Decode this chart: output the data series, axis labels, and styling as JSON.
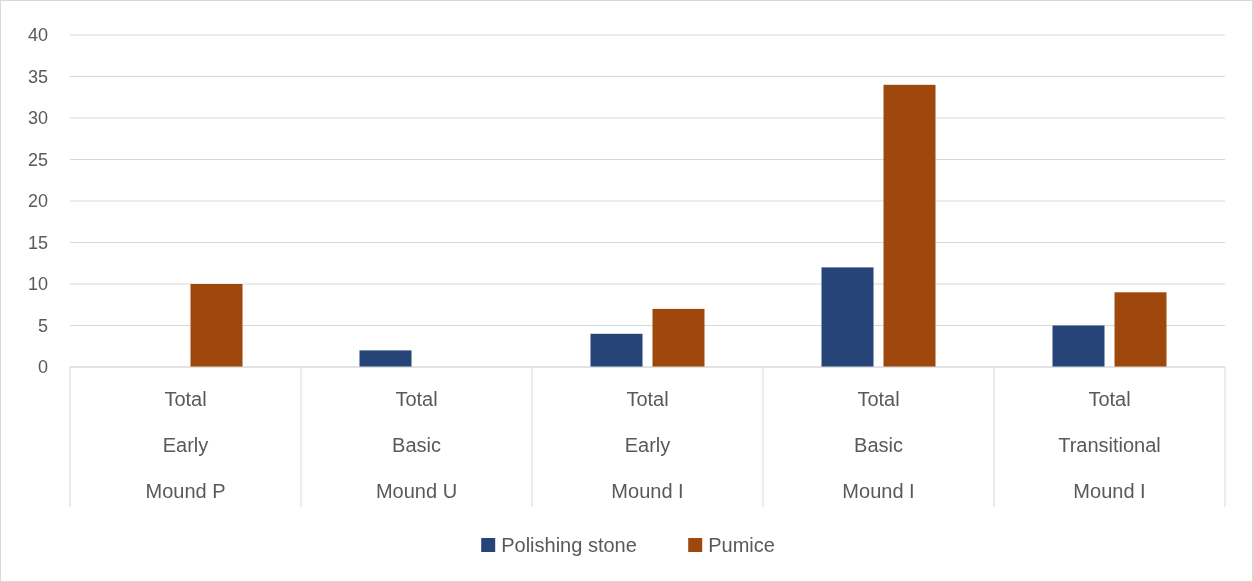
{
  "chart_data": {
    "type": "bar",
    "categories": [
      "Total\nEarly\nMound P",
      "Total\nBasic\nMound U",
      "Total\nEarly\nMound I",
      "Total\nBasic\nMound I",
      "Total\nTransitional\nMound I"
    ],
    "series": [
      {
        "name": "Polishing stone",
        "color": "#264478",
        "values": [
          null,
          2,
          4,
          12,
          5
        ]
      },
      {
        "name": "Pumice",
        "color": "#9e480e",
        "values": [
          10,
          null,
          7,
          34,
          9
        ]
      }
    ],
    "ylim": [
      0,
      40
    ],
    "yticks": [
      0,
      5,
      10,
      15,
      20,
      25,
      30,
      35,
      40
    ],
    "grid": "y",
    "legend": "bottom"
  }
}
